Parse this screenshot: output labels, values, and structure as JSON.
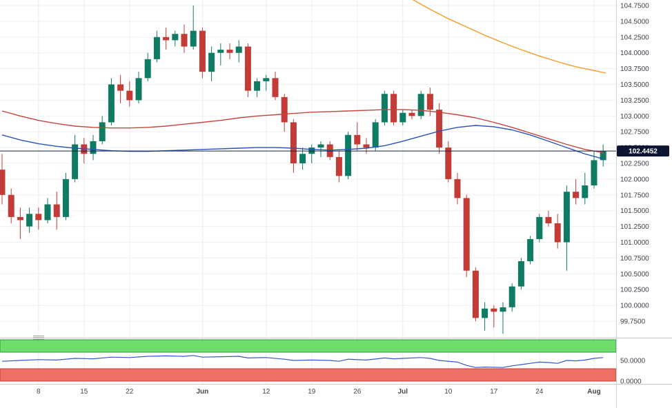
{
  "window": {
    "title": "Price chart with RSI"
  },
  "colors": {
    "background": "#ffffff",
    "grid_h": "#efefef",
    "grid_v": "#ececec",
    "candle_up": "#0f7b63",
    "candle_down": "#c23b36",
    "axis_text": "#3a3f47",
    "axis_divider": "#d0d0d0",
    "panel_separator": "#c8c8c8",
    "price_line": "#10203c",
    "price_badge_bg": "#0c1633",
    "price_badge_text": "#ffffff"
  },
  "chart_data": {
    "type": "candlestick",
    "title": "",
    "price_axis": {
      "min": 99.75,
      "max": 104.75,
      "step": 0.25,
      "tick_labels": [
        "104.7500",
        "104.5000",
        "104.2500",
        "104.0000",
        "103.7500",
        "103.5000",
        "103.2500",
        "103.0000",
        "102.7500",
        "102.5000",
        "102.2500",
        "102.0000",
        "101.7500",
        "101.5000",
        "101.2500",
        "101.0000",
        "100.7500",
        "100.5000",
        "100.2500",
        "100.0000",
        "99.7500"
      ]
    },
    "time_axis": {
      "tick_labels": [
        {
          "text": "8",
          "index": 4,
          "bold": false
        },
        {
          "text": "15",
          "index": 9,
          "bold": false
        },
        {
          "text": "22",
          "index": 14,
          "bold": false
        },
        {
          "text": "Jun",
          "index": 22,
          "bold": true
        },
        {
          "text": "12",
          "index": 29,
          "bold": false
        },
        {
          "text": "19",
          "index": 34,
          "bold": false
        },
        {
          "text": "26",
          "index": 39,
          "bold": false
        },
        {
          "text": "Jul",
          "index": 44,
          "bold": true
        },
        {
          "text": "10",
          "index": 49,
          "bold": false
        },
        {
          "text": "17",
          "index": 54,
          "bold": false
        },
        {
          "text": "24",
          "index": 59,
          "bold": false
        },
        {
          "text": "Aug",
          "index": 65,
          "bold": true
        }
      ]
    },
    "current_price": {
      "value": 102.4452,
      "label": "102.4452"
    },
    "candles": [
      [
        102.15,
        102.4,
        101.6,
        101.75
      ],
      [
        101.75,
        101.85,
        101.3,
        101.4
      ],
      [
        101.4,
        101.55,
        101.05,
        101.35
      ],
      [
        101.25,
        101.55,
        101.15,
        101.45
      ],
      [
        101.45,
        101.55,
        101.2,
        101.35
      ],
      [
        101.35,
        101.7,
        101.3,
        101.6
      ],
      [
        101.6,
        101.8,
        101.2,
        101.4
      ],
      [
        101.4,
        102.1,
        101.35,
        102.0
      ],
      [
        102.0,
        102.7,
        101.95,
        102.55
      ],
      [
        102.55,
        102.65,
        102.25,
        102.4
      ],
      [
        102.4,
        102.7,
        102.3,
        102.6
      ],
      [
        102.6,
        103.0,
        102.55,
        102.9
      ],
      [
        102.9,
        103.6,
        102.85,
        103.5
      ],
      [
        103.5,
        103.65,
        103.2,
        103.4
      ],
      [
        103.4,
        103.55,
        103.15,
        103.25
      ],
      [
        103.25,
        103.7,
        103.2,
        103.6
      ],
      [
        103.6,
        104.0,
        103.55,
        103.9
      ],
      [
        103.9,
        104.35,
        103.85,
        104.25
      ],
      [
        104.25,
        104.4,
        104.05,
        104.2
      ],
      [
        104.2,
        104.35,
        104.1,
        104.3
      ],
      [
        104.3,
        104.45,
        104.0,
        104.1
      ],
      [
        104.1,
        104.75,
        104.05,
        104.35
      ],
      [
        104.35,
        104.4,
        103.6,
        103.7
      ],
      [
        103.7,
        104.1,
        103.55,
        104.0
      ],
      [
        104.0,
        104.15,
        103.8,
        104.05
      ],
      [
        104.05,
        104.15,
        103.9,
        104.0
      ],
      [
        104.0,
        104.2,
        103.85,
        104.1
      ],
      [
        104.1,
        104.15,
        103.3,
        103.4
      ],
      [
        103.4,
        103.6,
        103.3,
        103.55
      ],
      [
        103.55,
        103.65,
        103.4,
        103.6
      ],
      [
        103.6,
        103.7,
        103.25,
        103.3
      ],
      [
        103.3,
        103.35,
        102.75,
        102.9
      ],
      [
        102.9,
        102.95,
        102.1,
        102.25
      ],
      [
        102.25,
        102.5,
        102.15,
        102.4
      ],
      [
        102.4,
        102.55,
        102.25,
        102.5
      ],
      [
        102.5,
        102.6,
        102.35,
        102.55
      ],
      [
        102.55,
        102.6,
        102.3,
        102.35
      ],
      [
        102.35,
        102.45,
        101.95,
        102.05
      ],
      [
        102.05,
        102.75,
        102.0,
        102.7
      ],
      [
        102.7,
        102.9,
        102.45,
        102.55
      ],
      [
        102.55,
        102.65,
        102.4,
        102.5
      ],
      [
        102.5,
        102.95,
        102.45,
        102.9
      ],
      [
        102.9,
        103.4,
        102.85,
        103.35
      ],
      [
        103.35,
        103.4,
        102.85,
        102.9
      ],
      [
        102.9,
        103.1,
        102.85,
        103.05
      ],
      [
        103.05,
        103.1,
        102.95,
        103.0
      ],
      [
        103.0,
        103.4,
        102.95,
        103.35
      ],
      [
        103.35,
        103.45,
        103.0,
        103.1
      ],
      [
        103.1,
        103.2,
        102.4,
        102.5
      ],
      [
        102.5,
        102.6,
        101.95,
        102.0
      ],
      [
        102.0,
        102.1,
        101.6,
        101.7
      ],
      [
        101.7,
        101.75,
        100.45,
        100.55
      ],
      [
        100.55,
        100.6,
        99.75,
        99.8
      ],
      [
        99.8,
        100.05,
        99.6,
        99.95
      ],
      [
        99.95,
        100.0,
        99.65,
        99.9
      ],
      [
        99.9,
        100.05,
        99.55,
        99.97
      ],
      [
        99.97,
        100.35,
        99.9,
        100.3
      ],
      [
        100.3,
        100.75,
        100.25,
        100.7
      ],
      [
        100.7,
        101.1,
        100.65,
        101.05
      ],
      [
        101.05,
        101.45,
        101.0,
        101.4
      ],
      [
        101.4,
        101.5,
        101.25,
        101.3
      ],
      [
        101.3,
        101.45,
        100.9,
        101.0
      ],
      [
        101.0,
        101.9,
        100.55,
        101.8
      ],
      [
        101.8,
        102.0,
        101.6,
        101.7
      ],
      [
        101.7,
        102.1,
        101.6,
        101.9
      ],
      [
        101.9,
        102.45,
        101.85,
        102.3
      ],
      [
        102.3,
        102.55,
        102.2,
        102.4452
      ]
    ],
    "overlays": [
      {
        "name": "sma-red",
        "color": "#c8433c",
        "points": [
          [
            0,
            103.08
          ],
          [
            2,
            103.0
          ],
          [
            4,
            102.93
          ],
          [
            6,
            102.88
          ],
          [
            8,
            102.84
          ],
          [
            10,
            102.82
          ],
          [
            12,
            102.81
          ],
          [
            14,
            102.81
          ],
          [
            16,
            102.82
          ],
          [
            18,
            102.84
          ],
          [
            20,
            102.87
          ],
          [
            22,
            102.9
          ],
          [
            24,
            102.93
          ],
          [
            26,
            102.97
          ],
          [
            28,
            103.0
          ],
          [
            30,
            103.02
          ],
          [
            32,
            103.04
          ],
          [
            34,
            103.06
          ],
          [
            36,
            103.07
          ],
          [
            38,
            103.08
          ],
          [
            40,
            103.09
          ],
          [
            42,
            103.1
          ],
          [
            44,
            103.1
          ],
          [
            46,
            103.09
          ],
          [
            48,
            103.06
          ],
          [
            50,
            103.02
          ],
          [
            52,
            102.97
          ],
          [
            54,
            102.9
          ],
          [
            56,
            102.82
          ],
          [
            58,
            102.73
          ],
          [
            60,
            102.64
          ],
          [
            62,
            102.55
          ],
          [
            64,
            102.47
          ],
          [
            66,
            102.42
          ]
        ]
      },
      {
        "name": "sma-blue",
        "color": "#2a52be",
        "points": [
          [
            0,
            102.7
          ],
          [
            2,
            102.62
          ],
          [
            4,
            102.56
          ],
          [
            6,
            102.52
          ],
          [
            8,
            102.49
          ],
          [
            10,
            102.47
          ],
          [
            12,
            102.45
          ],
          [
            14,
            102.44
          ],
          [
            16,
            102.44
          ],
          [
            18,
            102.45
          ],
          [
            20,
            102.46
          ],
          [
            22,
            102.47
          ],
          [
            24,
            102.48
          ],
          [
            26,
            102.49
          ],
          [
            28,
            102.5
          ],
          [
            30,
            102.5
          ],
          [
            32,
            102.49
          ],
          [
            34,
            102.47
          ],
          [
            36,
            102.46
          ],
          [
            38,
            102.47
          ],
          [
            40,
            102.49
          ],
          [
            42,
            102.53
          ],
          [
            44,
            102.6
          ],
          [
            46,
            102.68
          ],
          [
            48,
            102.76
          ],
          [
            50,
            102.82
          ],
          [
            52,
            102.85
          ],
          [
            54,
            102.83
          ],
          [
            56,
            102.78
          ],
          [
            58,
            102.7
          ],
          [
            60,
            102.6
          ],
          [
            62,
            102.5
          ],
          [
            64,
            102.4
          ],
          [
            66,
            102.32
          ]
        ]
      },
      {
        "name": "sma-orange",
        "color": "#f59a23",
        "points": [
          [
            45,
            104.85
          ],
          [
            47,
            104.69
          ],
          [
            49,
            104.54
          ],
          [
            51,
            104.41
          ],
          [
            53,
            104.28
          ],
          [
            55,
            104.16
          ],
          [
            57,
            104.05
          ],
          [
            59,
            103.95
          ],
          [
            61,
            103.86
          ],
          [
            63,
            103.78
          ],
          [
            65,
            103.72
          ],
          [
            66.3,
            103.68
          ]
        ]
      }
    ],
    "rsi": {
      "type": "line",
      "range": [
        0,
        100
      ],
      "tick_labels": [
        {
          "text": "50.0000",
          "value": 50
        },
        {
          "text": "0.0000",
          "value": 0
        }
      ],
      "bands": [
        {
          "name": "overbought",
          "from": 70,
          "to": 100,
          "fill": "#6fdd6b",
          "stroke": "#259d3c"
        },
        {
          "name": "oversold",
          "from": 0,
          "to": 30,
          "fill": "#ee6f65",
          "stroke": "#cf3a31"
        }
      ],
      "line_color": "#3556cc",
      "points": [
        [
          0,
          48
        ],
        [
          2,
          50
        ],
        [
          4,
          52
        ],
        [
          6,
          51
        ],
        [
          8,
          55
        ],
        [
          10,
          54
        ],
        [
          12,
          58
        ],
        [
          14,
          57
        ],
        [
          16,
          60
        ],
        [
          18,
          61
        ],
        [
          20,
          60
        ],
        [
          21,
          62
        ],
        [
          22,
          58
        ],
        [
          24,
          59
        ],
        [
          26,
          60
        ],
        [
          27,
          56
        ],
        [
          29,
          57
        ],
        [
          31,
          53
        ],
        [
          32,
          50
        ],
        [
          34,
          51
        ],
        [
          36,
          50
        ],
        [
          37,
          48
        ],
        [
          38,
          53
        ],
        [
          40,
          51
        ],
        [
          42,
          56
        ],
        [
          43,
          54
        ],
        [
          44,
          55
        ],
        [
          46,
          57
        ],
        [
          47,
          55
        ],
        [
          48,
          50
        ],
        [
          50,
          46
        ],
        [
          51,
          38
        ],
        [
          52,
          33
        ],
        [
          53,
          34
        ],
        [
          55,
          33
        ],
        [
          56,
          37
        ],
        [
          57,
          40
        ],
        [
          58,
          43
        ],
        [
          59,
          46
        ],
        [
          60,
          45
        ],
        [
          61,
          43
        ],
        [
          62,
          50
        ],
        [
          63,
          49
        ],
        [
          64,
          51
        ],
        [
          65,
          55
        ],
        [
          66,
          57
        ]
      ]
    }
  }
}
